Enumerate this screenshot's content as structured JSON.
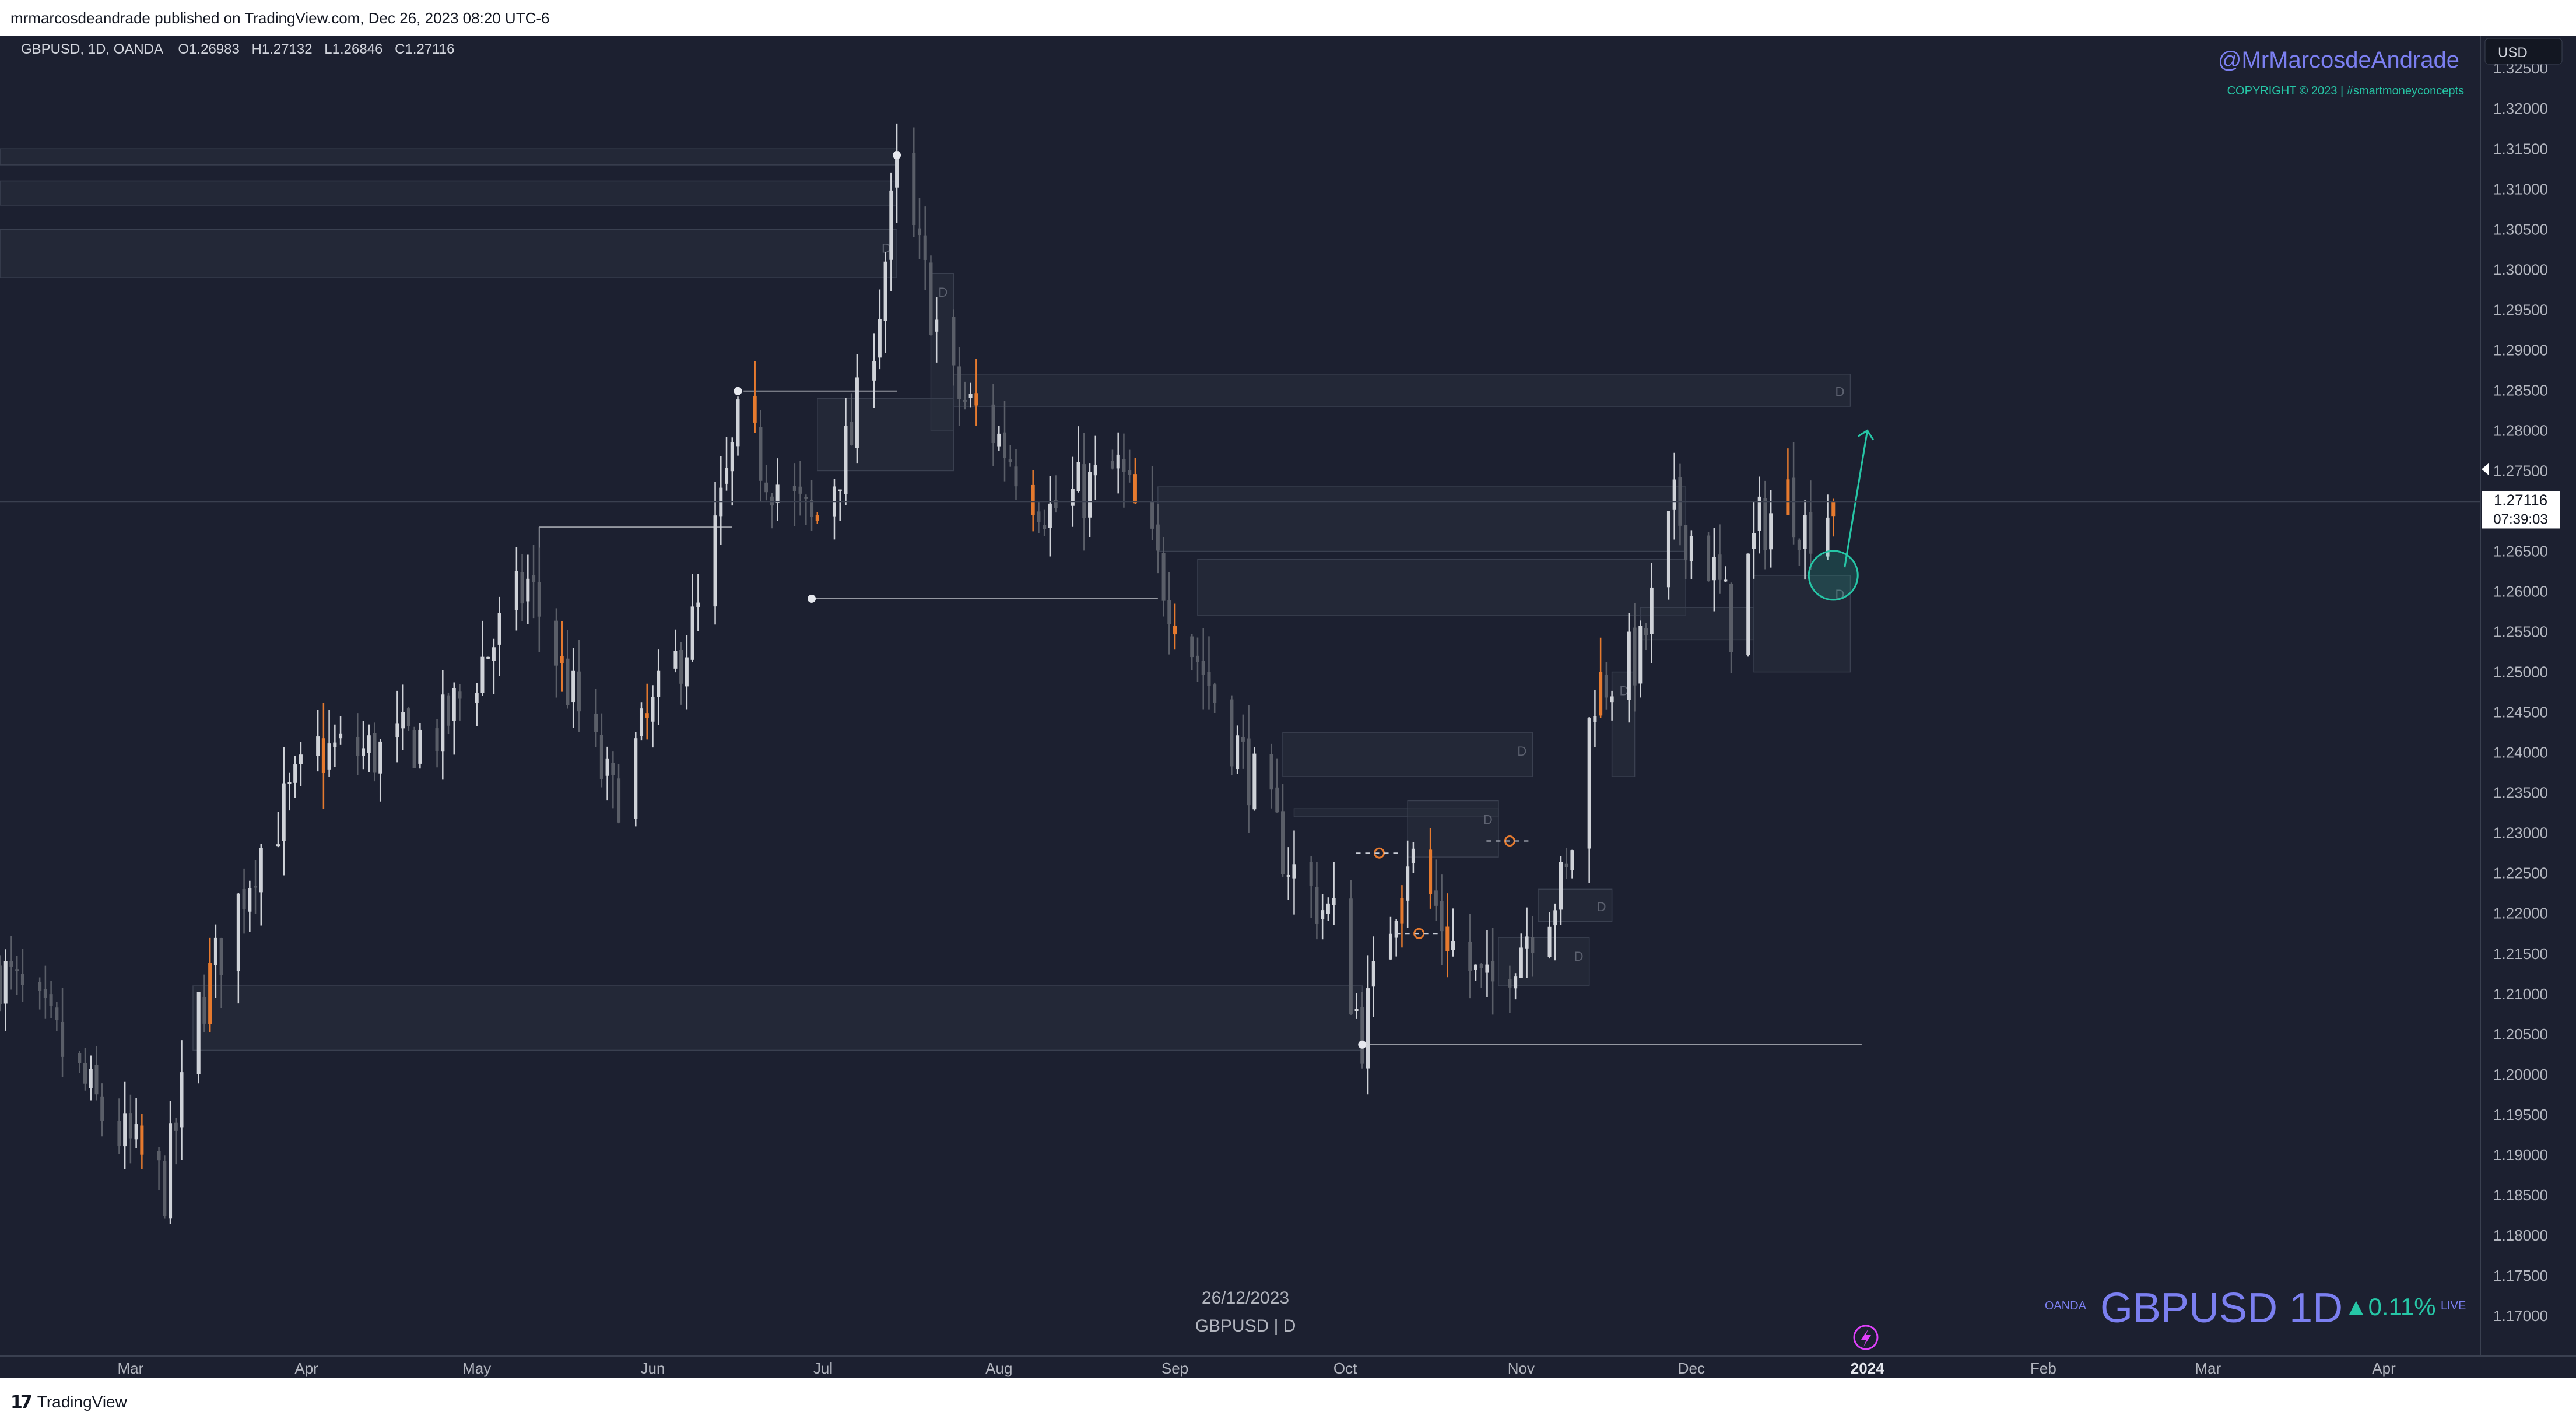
{
  "publish_bar": {
    "text": "mrmarcosdeandrade published on TradingView.com, Dec 26, 2023 08:20 UTC-6"
  },
  "symbol_header": {
    "symbol_line": "GBPUSD, 1D, OANDA",
    "open_label": "O",
    "open_value": "1.26983",
    "high_label": "H",
    "high_value": "1.27132",
    "low_label": "L",
    "low_value": "1.26846",
    "close_label": "C",
    "close_value": "1.27116"
  },
  "branding": {
    "author": "@MrMarcosdeAndrade",
    "copyright": "COPYRIGHT © 2023 | #smartmoneyconcepts",
    "watermark_exchange": "OANDA",
    "watermark_symbol": "GBPUSD 1D",
    "watermark_change": "▲0.11%",
    "watermark_live": "LIVE"
  },
  "price_scale": {
    "currency": "USD",
    "last_price": "1.27116",
    "countdown": "07:39:03"
  },
  "footer_note": {
    "date": "26/12/2023",
    "symbol": "GBPUSD | D"
  },
  "brand": {
    "name": "TradingView"
  },
  "zone_label": "D",
  "colors": {
    "background": "#1c2030",
    "bull_candle": "#cfd2d8",
    "bear_candle": "#5a5e68",
    "highlight_candle": "#e67a2e",
    "accent_blue": "#7b7ff0",
    "accent_green": "#26c6a6",
    "zone_fill": "#2a2f3e",
    "zone_stroke": "#3a4050"
  },
  "chart_data": {
    "type": "candlestick",
    "symbol": "GBPUSD",
    "timeframe": "1D",
    "exchange": "OANDA",
    "ylim": [
      1.165,
      1.329
    ],
    "y_ticks": [
      "1.17000",
      "1.17500",
      "1.18000",
      "1.18500",
      "1.19000",
      "1.19500",
      "1.20000",
      "1.20500",
      "1.21000",
      "1.21500",
      "1.22000",
      "1.22500",
      "1.23000",
      "1.23500",
      "1.24000",
      "1.24500",
      "1.25000",
      "1.25500",
      "1.26000",
      "1.26500",
      "1.27000",
      "1.27500",
      "1.28000",
      "1.28500",
      "1.29000",
      "1.29500",
      "1.30000",
      "1.30500",
      "1.31000",
      "1.31500",
      "1.32000",
      "1.32500"
    ],
    "x_range": [
      "2023-02-06",
      "2024-04-18"
    ],
    "x_ticks": [
      {
        "label": "Mar",
        "date": "2023-03-01"
      },
      {
        "label": "Apr",
        "date": "2023-04-01"
      },
      {
        "label": "May",
        "date": "2023-05-01"
      },
      {
        "label": "Jun",
        "date": "2023-06-01"
      },
      {
        "label": "Jul",
        "date": "2023-07-01"
      },
      {
        "label": "Aug",
        "date": "2023-08-01"
      },
      {
        "label": "Sep",
        "date": "2023-09-01"
      },
      {
        "label": "Oct",
        "date": "2023-10-01"
      },
      {
        "label": "Nov",
        "date": "2023-11-01"
      },
      {
        "label": "Dec",
        "date": "2023-12-01"
      },
      {
        "label": "2024",
        "date": "2024-01-01"
      },
      {
        "label": "Feb",
        "date": "2024-02-01"
      },
      {
        "label": "Mar",
        "date": "2024-03-01"
      },
      {
        "label": "Apr",
        "date": "2024-04-01"
      }
    ],
    "last_close": 1.27116,
    "price_path": [
      [
        "2023-02-06",
        1.213
      ],
      [
        "2023-02-15",
        1.205
      ],
      [
        "2023-02-24",
        1.195
      ],
      [
        "2023-03-07",
        1.186
      ],
      [
        "2023-03-13",
        1.208
      ],
      [
        "2023-03-23",
        1.227
      ],
      [
        "2023-04-03",
        1.24
      ],
      [
        "2023-04-14",
        1.24
      ],
      [
        "2023-04-25",
        1.243
      ],
      [
        "2023-05-10",
        1.261
      ],
      [
        "2023-05-25",
        1.234
      ],
      [
        "2023-06-09",
        1.257
      ],
      [
        "2023-06-16",
        1.28
      ],
      [
        "2023-06-29",
        1.268
      ],
      [
        "2023-07-06",
        1.279
      ],
      [
        "2023-07-11",
        1.296
      ],
      [
        "2023-07-14",
        1.312
      ],
      [
        "2023-07-24",
        1.285
      ],
      [
        "2023-07-31",
        1.28
      ],
      [
        "2023-08-10",
        1.27
      ],
      [
        "2023-08-22",
        1.275
      ],
      [
        "2023-08-29",
        1.263
      ],
      [
        "2023-09-08",
        1.247
      ],
      [
        "2023-09-22",
        1.225
      ],
      [
        "2023-09-29",
        1.219
      ],
      [
        "2023-10-04",
        1.205
      ],
      [
        "2023-10-12",
        1.228
      ],
      [
        "2023-10-20",
        1.216
      ],
      [
        "2023-10-26",
        1.21
      ],
      [
        "2023-11-02",
        1.218
      ],
      [
        "2023-11-09",
        1.224
      ],
      [
        "2023-11-14",
        1.248
      ],
      [
        "2023-11-22",
        1.252
      ],
      [
        "2023-11-28",
        1.27
      ],
      [
        "2023-12-04",
        1.264
      ],
      [
        "2023-12-08",
        1.256
      ],
      [
        "2023-12-13",
        1.268
      ],
      [
        "2023-12-18",
        1.272
      ],
      [
        "2023-12-21",
        1.268
      ],
      [
        "2023-12-26",
        1.27116
      ]
    ],
    "highlight_candle_dates": [
      "2023-03-03",
      "2023-03-15",
      "2023-04-04",
      "2023-05-16",
      "2023-05-31",
      "2023-06-19",
      "2023-06-30",
      "2023-07-28",
      "2023-08-07",
      "2023-08-25",
      "2023-09-01",
      "2023-10-11",
      "2023-10-16",
      "2023-10-19",
      "2023-11-15",
      "2023-12-18",
      "2023-12-26"
    ],
    "swing_points": [
      {
        "date": "2023-06-16",
        "price": 1.2849
      },
      {
        "date": "2023-06-29",
        "price": 1.2591
      },
      {
        "date": "2023-07-14",
        "price": 1.3142
      },
      {
        "date": "2023-10-04",
        "price": 1.2037
      }
    ],
    "horizontal_levels": [
      {
        "start": "2023-05-12",
        "end": "2023-06-15",
        "price": 1.268
      },
      {
        "start": "2023-06-17",
        "end": "2023-07-14",
        "price": 1.2849
      },
      {
        "start": "2023-06-29",
        "end": "2023-08-29",
        "price": 1.2591
      },
      {
        "start": "2023-10-04",
        "end": "2023-12-31",
        "price": 1.2037
      }
    ],
    "zones": [
      {
        "start": "2023-02-06",
        "end": "2023-07-14",
        "top": 1.315,
        "bottom": 1.313,
        "label": ""
      },
      {
        "start": "2023-02-06",
        "end": "2023-07-14",
        "top": 1.311,
        "bottom": 1.308,
        "label": ""
      },
      {
        "start": "2023-02-06",
        "end": "2023-07-14",
        "top": 1.305,
        "bottom": 1.299,
        "label": "D"
      },
      {
        "start": "2023-07-20",
        "end": "2023-07-24",
        "top": 1.2995,
        "bottom": 1.28,
        "label": "D"
      },
      {
        "start": "2023-07-24",
        "end": "2023-12-29",
        "top": 1.287,
        "bottom": 1.283,
        "label": "D"
      },
      {
        "start": "2023-06-30",
        "end": "2023-07-24",
        "top": 1.284,
        "bottom": 1.275,
        "label": ""
      },
      {
        "start": "2023-08-29",
        "end": "2023-11-30",
        "top": 1.273,
        "bottom": 1.265,
        "label": ""
      },
      {
        "start": "2023-09-05",
        "end": "2023-11-30",
        "top": 1.264,
        "bottom": 1.257,
        "label": ""
      },
      {
        "start": "2023-11-22",
        "end": "2023-12-12",
        "top": 1.258,
        "bottom": 1.254,
        "label": ""
      },
      {
        "start": "2023-12-12",
        "end": "2023-12-29",
        "top": 1.262,
        "bottom": 1.25,
        "label": "D"
      },
      {
        "start": "2023-11-17",
        "end": "2023-11-21",
        "top": 1.25,
        "bottom": 1.237,
        "label": "D"
      },
      {
        "start": "2023-09-20",
        "end": "2023-11-03",
        "top": 1.2425,
        "bottom": 1.237,
        "label": "D"
      },
      {
        "start": "2023-09-22",
        "end": "2023-10-28",
        "top": 1.233,
        "bottom": 1.232,
        "label": ""
      },
      {
        "start": "2023-10-12",
        "end": "2023-10-28",
        "top": 1.234,
        "bottom": 1.227,
        "label": "D"
      },
      {
        "start": "2023-11-04",
        "end": "2023-11-17",
        "top": 1.223,
        "bottom": 1.219,
        "label": "D"
      },
      {
        "start": "2023-10-28",
        "end": "2023-11-13",
        "top": 1.217,
        "bottom": 1.211,
        "label": "D"
      },
      {
        "start": "2023-03-12",
        "end": "2023-10-04",
        "top": 1.211,
        "bottom": 1.203,
        "label": ""
      }
    ],
    "projection": {
      "from": [
        "2023-12-28",
        1.263
      ],
      "to": [
        "2024-01-01",
        1.28
      ]
    },
    "circle_marker": {
      "date": "2023-12-26",
      "price": 1.262
    }
  }
}
